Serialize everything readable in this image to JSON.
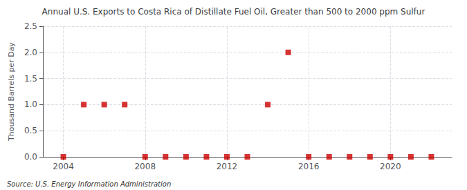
{
  "chart_data": {
    "type": "scatter",
    "title": "Annual U.S. Exports to Costa Rica of Distillate Fuel Oil, Greater than 500 to 2000 ppm Sulfur",
    "ylabel": "Thousand Barrels per Day",
    "annotations": [
      "Source: U.S. Energy Information Administration"
    ],
    "x": [
      2004,
      2005,
      2006,
      2007,
      2008,
      2009,
      2010,
      2011,
      2012,
      2013,
      2014,
      2015,
      2016,
      2017,
      2018,
      2019,
      2020,
      2021,
      2022
    ],
    "values": [
      0.0,
      1.0,
      1.0,
      1.0,
      0.0,
      0.0,
      0.0,
      0.0,
      0.0,
      0.0,
      1.0,
      2.0,
      0.0,
      0.0,
      0.0,
      0.0,
      0.0,
      0.0,
      0.0
    ],
    "color": "#cc0000",
    "marker": "square",
    "xlim": [
      2003.0,
      2023.0
    ],
    "xticks": [
      2004,
      2008,
      2012,
      2016,
      2020
    ],
    "ylim": [
      0.0,
      2.5
    ],
    "yticks": [
      {
        "value": 0.0,
        "label": "0.0"
      },
      0.5,
      {
        "value": 1.0,
        "label": "1.0"
      },
      1.5,
      {
        "value": 2.0,
        "label": "2.0"
      },
      2.5
    ],
    "grid": true
  }
}
